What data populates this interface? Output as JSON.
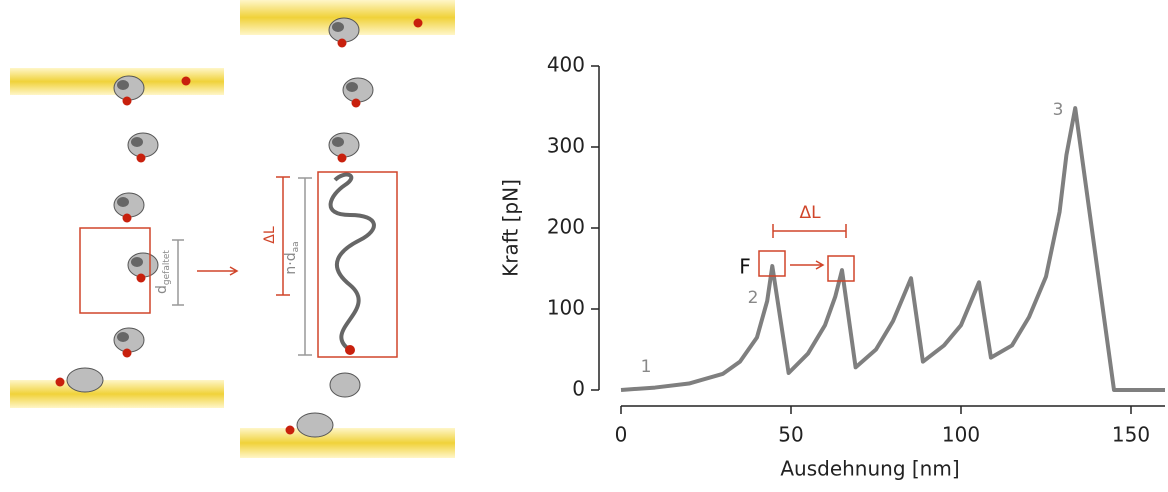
{
  "chart_data": {
    "type": "line",
    "xlabel": "Ausdehnung [nm]",
    "ylabel": "Kraft [pN]",
    "x": [
      0,
      10,
      20,
      30,
      35,
      40,
      43,
      44.5,
      49.3,
      55,
      60,
      63,
      65,
      69,
      75,
      80,
      83,
      85.3,
      88.8,
      95,
      100,
      103,
      105.3,
      108.8,
      115,
      120,
      125,
      129,
      131,
      133.6,
      145,
      160
    ],
    "values": [
      0,
      3,
      8,
      20,
      35,
      65,
      110,
      153,
      21,
      45,
      80,
      115,
      148,
      28,
      50,
      85,
      115,
      138,
      35,
      55,
      80,
      110,
      133,
      40,
      55,
      90,
      140,
      220,
      290,
      348,
      0,
      0
    ],
    "color": "#7f7f7f",
    "xlim": [
      0,
      160
    ],
    "ylim": [
      0,
      400
    ],
    "xticks": [
      0,
      50,
      100,
      150
    ],
    "yticks": [
      0,
      100,
      200,
      300,
      400
    ],
    "annotations": [
      "1",
      "2",
      "3",
      "F",
      "ΔL"
    ]
  },
  "diagram": {
    "left_label": "d",
    "left_subscript": "gefaltet",
    "delta_label": "ΔL",
    "length_label": "n·d",
    "length_subscript": "aa"
  }
}
